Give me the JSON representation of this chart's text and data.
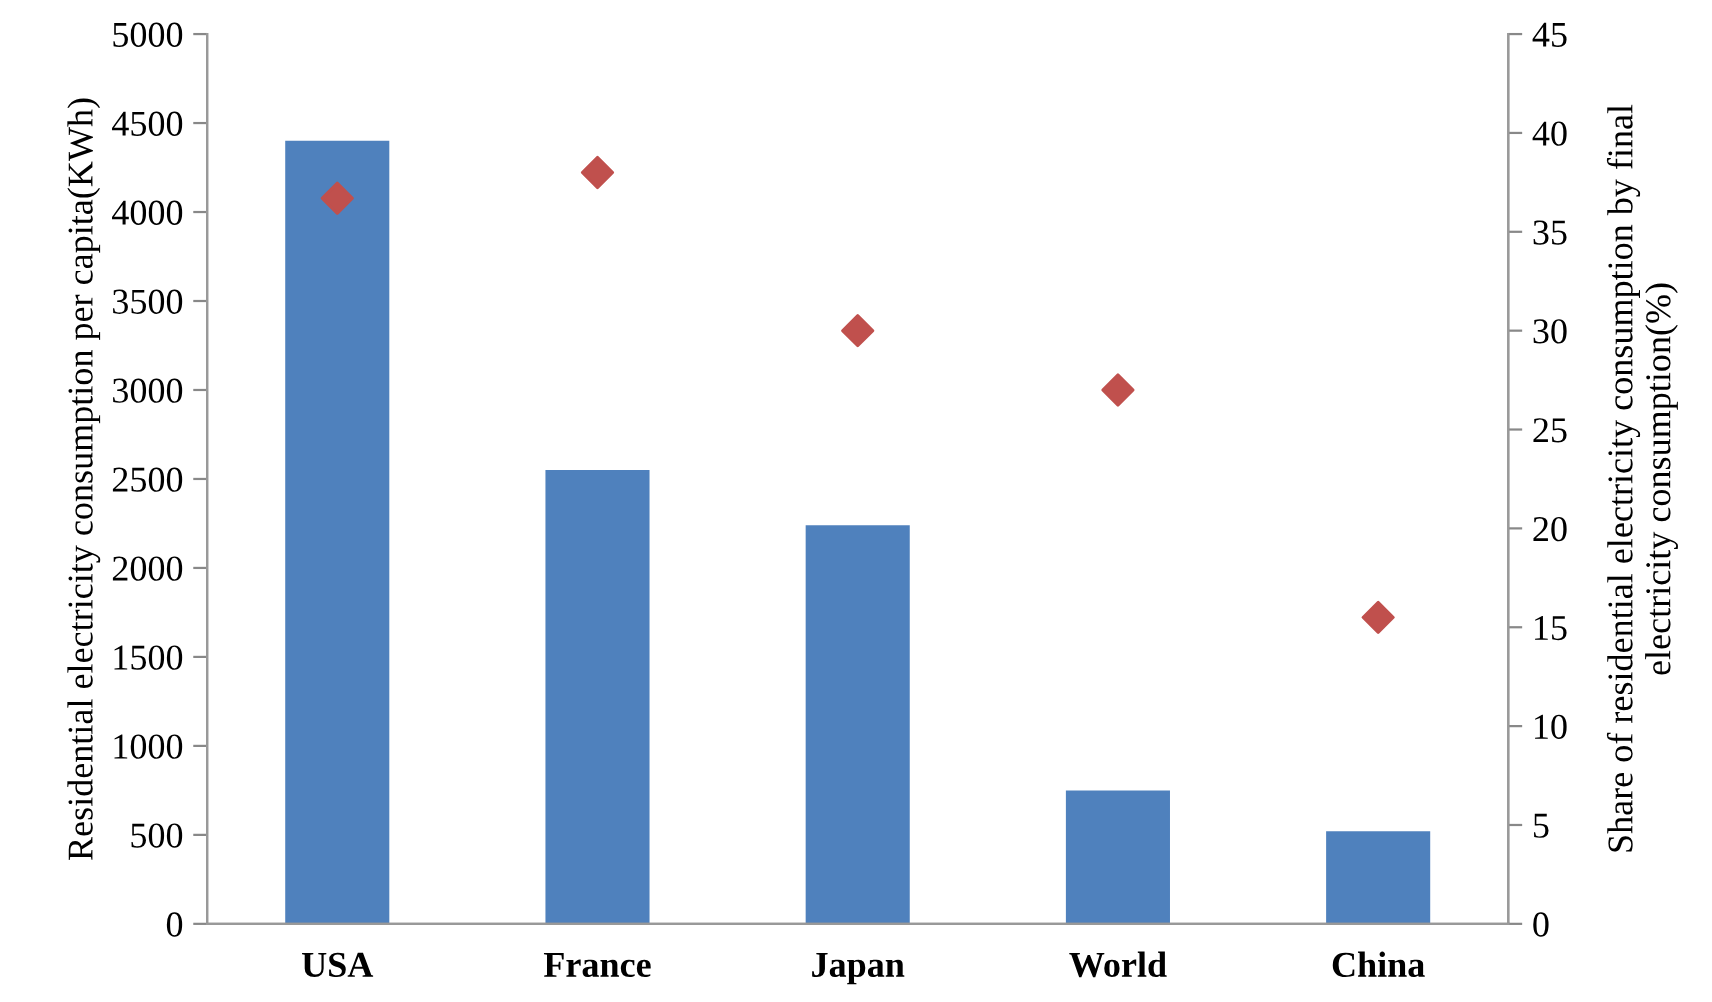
{
  "chart_data": {
    "type": "bar",
    "categories": [
      "USA",
      "France",
      "Japan",
      "World",
      "China"
    ],
    "ylabel": "Residential electricity consumption per capita(KWh)",
    "y2label": "Share of residential electricity consumption by final\nelectricity consumption(%)",
    "series": [
      {
        "color": "#4f81bd",
        "values": [
          4400,
          2550,
          2240,
          750,
          520
        ]
      },
      {
        "type": "scatter",
        "axis": "y2",
        "color": "#c0504d",
        "marker": "diamond",
        "values": [
          36.7,
          38.0,
          30.0,
          27.0,
          15.5
        ]
      }
    ],
    "ylim": [
      0,
      5000
    ],
    "yticks": [
      0,
      500,
      1000,
      1500,
      2000,
      2500,
      3000,
      3500,
      4000,
      4500,
      5000
    ],
    "y2lim": [
      0,
      45
    ],
    "y2ticks": [
      0,
      5,
      10,
      15,
      20,
      25,
      30,
      35,
      40,
      45
    ],
    "grid": false
  }
}
